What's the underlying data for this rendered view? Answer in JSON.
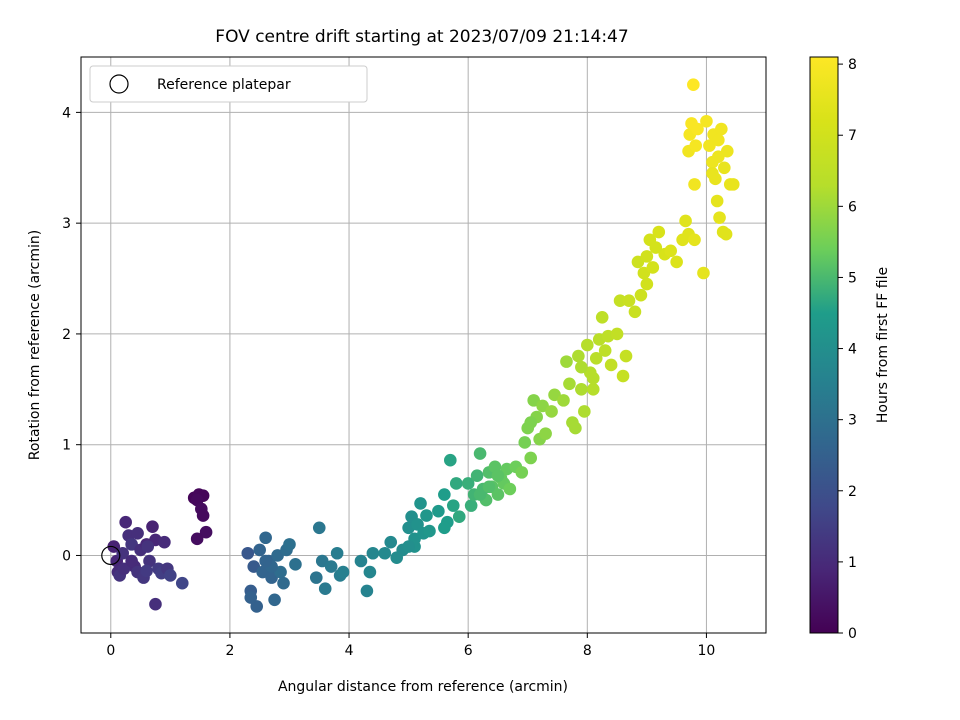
{
  "chart_data": {
    "type": "scatter",
    "title": "FOV centre drift starting at 2023/07/09 21:14:47",
    "xlabel": "Angular distance from reference (arcmin)",
    "ylabel": "Rotation from reference (arcmin)",
    "xlim": [
      -0.5,
      11.0
    ],
    "ylim": [
      -0.7,
      4.5
    ],
    "xticks": [
      "0",
      "2",
      "4",
      "6",
      "8",
      "10"
    ],
    "xtick_values": [
      0,
      2,
      4,
      6,
      8,
      10
    ],
    "yticks": [
      "0",
      "1",
      "2",
      "3",
      "4"
    ],
    "ytick_values": [
      0,
      1,
      2,
      3,
      4
    ],
    "grid": true,
    "legend": {
      "placement": "top-left",
      "entries": [
        "Reference platepar"
      ]
    },
    "reference_point": {
      "x": 0,
      "y": 0
    },
    "colormap": "viridis",
    "colorbar": {
      "label": "Hours from first FF file",
      "range": [
        0,
        8.1
      ],
      "ticks": [
        "0",
        "1",
        "2",
        "3",
        "4",
        "5",
        "6",
        "7",
        "8"
      ],
      "tick_values": [
        0,
        1,
        2,
        3,
        4,
        5,
        6,
        7,
        8
      ]
    },
    "series": [
      {
        "points": [
          {
            "x": 1.4,
            "y": 0.52,
            "c": 0.1
          },
          {
            "x": 1.48,
            "y": 0.55,
            "c": 0.15
          },
          {
            "x": 1.55,
            "y": 0.54,
            "c": 0.12
          },
          {
            "x": 1.45,
            "y": 0.5,
            "c": 0.2
          },
          {
            "x": 1.52,
            "y": 0.42,
            "c": 0.25
          },
          {
            "x": 1.55,
            "y": 0.36,
            "c": 0.22
          },
          {
            "x": 1.6,
            "y": 0.21,
            "c": 0.3
          },
          {
            "x": 1.45,
            "y": 0.15,
            "c": 0.28
          },
          {
            "x": 0.05,
            "y": 0.08,
            "c": 0.8
          },
          {
            "x": 0.1,
            "y": -0.05,
            "c": 0.9
          },
          {
            "x": 0.12,
            "y": -0.15,
            "c": 1.0
          },
          {
            "x": 0.2,
            "y": 0.02,
            "c": 1.2
          },
          {
            "x": 0.25,
            "y": 0.3,
            "c": 0.9
          },
          {
            "x": 0.3,
            "y": 0.18,
            "c": 1.1
          },
          {
            "x": 0.35,
            "y": 0.1,
            "c": 1.3
          },
          {
            "x": 0.4,
            "y": -0.1,
            "c": 1.0
          },
          {
            "x": 0.45,
            "y": -0.15,
            "c": 1.2
          },
          {
            "x": 0.5,
            "y": 0.05,
            "c": 1.1
          },
          {
            "x": 0.55,
            "y": -0.2,
            "c": 1.3
          },
          {
            "x": 0.6,
            "y": 0.1,
            "c": 0.9
          },
          {
            "x": 0.65,
            "y": -0.05,
            "c": 1.2
          },
          {
            "x": 0.7,
            "y": 0.26,
            "c": 0.8
          },
          {
            "x": 0.75,
            "y": 0.14,
            "c": 0.9
          },
          {
            "x": 0.8,
            "y": -0.12,
            "c": 1.4
          },
          {
            "x": 0.85,
            "y": -0.16,
            "c": 1.5
          },
          {
            "x": 0.9,
            "y": 0.12,
            "c": 1.0
          },
          {
            "x": 0.95,
            "y": -0.12,
            "c": 1.3
          },
          {
            "x": 1.0,
            "y": -0.18,
            "c": 1.6
          },
          {
            "x": 1.2,
            "y": -0.25,
            "c": 1.7
          },
          {
            "x": 0.75,
            "y": -0.44,
            "c": 1.1
          },
          {
            "x": 0.15,
            "y": -0.18,
            "c": 1.2
          },
          {
            "x": 0.22,
            "y": -0.12,
            "c": 1.1
          },
          {
            "x": 0.35,
            "y": -0.05,
            "c": 1.0
          },
          {
            "x": 0.6,
            "y": -0.14,
            "c": 1.4
          },
          {
            "x": 0.45,
            "y": 0.2,
            "c": 1.1
          },
          {
            "x": 0.62,
            "y": 0.08,
            "c": 1.2
          },
          {
            "x": 2.3,
            "y": 0.02,
            "c": 2.2
          },
          {
            "x": 2.4,
            "y": -0.1,
            "c": 2.3
          },
          {
            "x": 2.35,
            "y": -0.32,
            "c": 2.4
          },
          {
            "x": 2.45,
            "y": -0.46,
            "c": 2.5
          },
          {
            "x": 2.55,
            "y": -0.15,
            "c": 2.6
          },
          {
            "x": 2.6,
            "y": 0.16,
            "c": 2.7
          },
          {
            "x": 2.65,
            "y": -0.05,
            "c": 2.5
          },
          {
            "x": 2.7,
            "y": -0.2,
            "c": 2.6
          },
          {
            "x": 2.75,
            "y": -0.4,
            "c": 2.7
          },
          {
            "x": 2.8,
            "y": 0.0,
            "c": 2.8
          },
          {
            "x": 2.85,
            "y": -0.15,
            "c": 2.9
          },
          {
            "x": 2.9,
            "y": -0.25,
            "c": 2.8
          },
          {
            "x": 2.95,
            "y": 0.05,
            "c": 2.9
          },
          {
            "x": 3.0,
            "y": 0.1,
            "c": 3.0
          },
          {
            "x": 3.1,
            "y": -0.08,
            "c": 3.0
          },
          {
            "x": 2.5,
            "y": 0.05,
            "c": 2.6
          },
          {
            "x": 2.7,
            "y": -0.1,
            "c": 2.7
          },
          {
            "x": 2.35,
            "y": -0.38,
            "c": 2.5
          },
          {
            "x": 2.6,
            "y": -0.05,
            "c": 2.6
          },
          {
            "x": 3.5,
            "y": 0.25,
            "c": 3.2
          },
          {
            "x": 3.45,
            "y": -0.2,
            "c": 3.1
          },
          {
            "x": 3.55,
            "y": -0.05,
            "c": 3.2
          },
          {
            "x": 3.6,
            "y": -0.3,
            "c": 3.3
          },
          {
            "x": 3.7,
            "y": -0.1,
            "c": 3.3
          },
          {
            "x": 3.8,
            "y": 0.02,
            "c": 3.4
          },
          {
            "x": 3.85,
            "y": -0.18,
            "c": 3.4
          },
          {
            "x": 3.9,
            "y": -0.15,
            "c": 3.5
          },
          {
            "x": 4.2,
            "y": -0.05,
            "c": 3.6
          },
          {
            "x": 4.3,
            "y": -0.32,
            "c": 3.6
          },
          {
            "x": 4.4,
            "y": 0.02,
            "c": 3.7
          },
          {
            "x": 4.35,
            "y": -0.15,
            "c": 3.7
          },
          {
            "x": 4.6,
            "y": 0.02,
            "c": 3.8
          },
          {
            "x": 4.7,
            "y": 0.12,
            "c": 3.8
          },
          {
            "x": 4.8,
            "y": -0.02,
            "c": 3.9
          },
          {
            "x": 4.9,
            "y": 0.05,
            "c": 3.9
          },
          {
            "x": 5.0,
            "y": 0.25,
            "c": 4.0
          },
          {
            "x": 5.05,
            "y": 0.35,
            "c": 4.0
          },
          {
            "x": 5.1,
            "y": 0.15,
            "c": 4.1
          },
          {
            "x": 5.15,
            "y": 0.28,
            "c": 4.1
          },
          {
            "x": 5.2,
            "y": 0.47,
            "c": 4.2
          },
          {
            "x": 5.25,
            "y": 0.2,
            "c": 4.2
          },
          {
            "x": 5.3,
            "y": 0.36,
            "c": 4.3
          },
          {
            "x": 5.35,
            "y": 0.22,
            "c": 4.3
          },
          {
            "x": 5.1,
            "y": 0.08,
            "c": 4.1
          },
          {
            "x": 5.0,
            "y": 0.08,
            "c": 4.0
          },
          {
            "x": 5.5,
            "y": 0.4,
            "c": 4.4
          },
          {
            "x": 5.6,
            "y": 0.55,
            "c": 4.5
          },
          {
            "x": 5.65,
            "y": 0.3,
            "c": 4.5
          },
          {
            "x": 5.7,
            "y": 0.86,
            "c": 4.6
          },
          {
            "x": 5.75,
            "y": 0.45,
            "c": 4.6
          },
          {
            "x": 5.8,
            "y": 0.65,
            "c": 4.7
          },
          {
            "x": 5.85,
            "y": 0.35,
            "c": 4.7
          },
          {
            "x": 5.6,
            "y": 0.25,
            "c": 4.5
          },
          {
            "x": 6.0,
            "y": 0.65,
            "c": 4.8
          },
          {
            "x": 6.05,
            "y": 0.45,
            "c": 4.8
          },
          {
            "x": 6.1,
            "y": 0.55,
            "c": 4.9
          },
          {
            "x": 6.15,
            "y": 0.72,
            "c": 4.9
          },
          {
            "x": 6.2,
            "y": 0.92,
            "c": 5.0
          },
          {
            "x": 6.25,
            "y": 0.6,
            "c": 5.0
          },
          {
            "x": 6.3,
            "y": 0.5,
            "c": 5.1
          },
          {
            "x": 6.35,
            "y": 0.75,
            "c": 5.1
          },
          {
            "x": 6.4,
            "y": 0.62,
            "c": 5.2
          },
          {
            "x": 6.45,
            "y": 0.8,
            "c": 5.2
          },
          {
            "x": 6.5,
            "y": 0.55,
            "c": 5.2
          },
          {
            "x": 6.55,
            "y": 0.7,
            "c": 5.3
          },
          {
            "x": 6.6,
            "y": 0.65,
            "c": 5.3
          },
          {
            "x": 6.65,
            "y": 0.78,
            "c": 5.3
          },
          {
            "x": 6.7,
            "y": 0.6,
            "c": 5.4
          },
          {
            "x": 6.8,
            "y": 0.8,
            "c": 5.4
          },
          {
            "x": 6.2,
            "y": 0.55,
            "c": 5.0
          },
          {
            "x": 6.35,
            "y": 0.62,
            "c": 5.1
          },
          {
            "x": 6.5,
            "y": 0.72,
            "c": 5.2
          },
          {
            "x": 6.9,
            "y": 0.75,
            "c": 5.5
          },
          {
            "x": 6.95,
            "y": 1.02,
            "c": 5.5
          },
          {
            "x": 7.0,
            "y": 1.15,
            "c": 5.6
          },
          {
            "x": 7.05,
            "y": 0.88,
            "c": 5.6
          },
          {
            "x": 7.1,
            "y": 1.4,
            "c": 5.7
          },
          {
            "x": 7.15,
            "y": 1.25,
            "c": 5.7
          },
          {
            "x": 7.2,
            "y": 1.05,
            "c": 5.7
          },
          {
            "x": 7.25,
            "y": 1.35,
            "c": 5.8
          },
          {
            "x": 7.3,
            "y": 1.1,
            "c": 5.8
          },
          {
            "x": 7.4,
            "y": 1.3,
            "c": 5.9
          },
          {
            "x": 7.45,
            "y": 1.45,
            "c": 5.9
          },
          {
            "x": 7.05,
            "y": 1.2,
            "c": 5.6
          },
          {
            "x": 7.6,
            "y": 1.4,
            "c": 6.0
          },
          {
            "x": 7.65,
            "y": 1.75,
            "c": 6.0
          },
          {
            "x": 7.7,
            "y": 1.55,
            "c": 6.1
          },
          {
            "x": 7.75,
            "y": 1.2,
            "c": 6.1
          },
          {
            "x": 7.8,
            "y": 1.15,
            "c": 6.1
          },
          {
            "x": 7.85,
            "y": 1.8,
            "c": 6.2
          },
          {
            "x": 7.9,
            "y": 1.5,
            "c": 6.2
          },
          {
            "x": 7.95,
            "y": 1.3,
            "c": 6.2
          },
          {
            "x": 8.0,
            "y": 1.9,
            "c": 6.3
          },
          {
            "x": 8.05,
            "y": 1.65,
            "c": 6.3
          },
          {
            "x": 8.1,
            "y": 1.5,
            "c": 6.3
          },
          {
            "x": 8.15,
            "y": 1.78,
            "c": 6.4
          },
          {
            "x": 8.2,
            "y": 1.95,
            "c": 6.4
          },
          {
            "x": 8.25,
            "y": 2.15,
            "c": 6.5
          },
          {
            "x": 8.3,
            "y": 1.85,
            "c": 6.5
          },
          {
            "x": 8.35,
            "y": 1.98,
            "c": 6.5
          },
          {
            "x": 8.4,
            "y": 1.72,
            "c": 6.6
          },
          {
            "x": 8.5,
            "y": 2.0,
            "c": 6.6
          },
          {
            "x": 8.55,
            "y": 2.3,
            "c": 6.7
          },
          {
            "x": 8.6,
            "y": 1.62,
            "c": 6.7
          },
          {
            "x": 8.65,
            "y": 1.8,
            "c": 6.7
          },
          {
            "x": 7.9,
            "y": 1.7,
            "c": 6.2
          },
          {
            "x": 8.1,
            "y": 1.6,
            "c": 6.3
          },
          {
            "x": 8.7,
            "y": 2.3,
            "c": 6.8
          },
          {
            "x": 8.8,
            "y": 2.2,
            "c": 6.8
          },
          {
            "x": 8.85,
            "y": 2.65,
            "c": 6.9
          },
          {
            "x": 8.9,
            "y": 2.35,
            "c": 6.9
          },
          {
            "x": 8.95,
            "y": 2.55,
            "c": 7.0
          },
          {
            "x": 9.0,
            "y": 2.7,
            "c": 7.0
          },
          {
            "x": 9.05,
            "y": 2.85,
            "c": 7.1
          },
          {
            "x": 9.1,
            "y": 2.6,
            "c": 7.1
          },
          {
            "x": 9.2,
            "y": 2.92,
            "c": 7.2
          },
          {
            "x": 9.3,
            "y": 2.72,
            "c": 7.2
          },
          {
            "x": 9.4,
            "y": 2.75,
            "c": 7.3
          },
          {
            "x": 9.5,
            "y": 2.65,
            "c": 7.3
          },
          {
            "x": 9.6,
            "y": 2.85,
            "c": 7.4
          },
          {
            "x": 9.65,
            "y": 3.02,
            "c": 7.4
          },
          {
            "x": 9.7,
            "y": 2.9,
            "c": 7.4
          },
          {
            "x": 9.8,
            "y": 2.85,
            "c": 7.5
          },
          {
            "x": 9.95,
            "y": 2.55,
            "c": 7.5
          },
          {
            "x": 9.0,
            "y": 2.45,
            "c": 7.0
          },
          {
            "x": 9.15,
            "y": 2.78,
            "c": 7.1
          },
          {
            "x": 9.7,
            "y": 3.65,
            "c": 7.8
          },
          {
            "x": 9.72,
            "y": 3.8,
            "c": 7.9
          },
          {
            "x": 9.75,
            "y": 3.9,
            "c": 8.0
          },
          {
            "x": 9.78,
            "y": 4.25,
            "c": 8.1
          },
          {
            "x": 9.8,
            "y": 3.35,
            "c": 7.8
          },
          {
            "x": 9.82,
            "y": 3.7,
            "c": 7.9
          },
          {
            "x": 9.85,
            "y": 3.85,
            "c": 8.0
          },
          {
            "x": 10.0,
            "y": 3.92,
            "c": 7.9
          },
          {
            "x": 10.05,
            "y": 3.7,
            "c": 7.8
          },
          {
            "x": 10.1,
            "y": 3.55,
            "c": 7.7
          },
          {
            "x": 10.12,
            "y": 3.8,
            "c": 7.8
          },
          {
            "x": 10.15,
            "y": 3.4,
            "c": 7.6
          },
          {
            "x": 10.18,
            "y": 3.2,
            "c": 7.5
          },
          {
            "x": 10.2,
            "y": 3.6,
            "c": 7.7
          },
          {
            "x": 10.22,
            "y": 3.05,
            "c": 7.5
          },
          {
            "x": 10.25,
            "y": 3.85,
            "c": 7.8
          },
          {
            "x": 10.28,
            "y": 2.92,
            "c": 7.4
          },
          {
            "x": 10.3,
            "y": 3.5,
            "c": 7.6
          },
          {
            "x": 10.33,
            "y": 2.9,
            "c": 7.4
          },
          {
            "x": 10.35,
            "y": 3.65,
            "c": 7.7
          },
          {
            "x": 10.4,
            "y": 3.35,
            "c": 7.6
          },
          {
            "x": 10.45,
            "y": 3.35,
            "c": 7.6
          },
          {
            "x": 10.1,
            "y": 3.45,
            "c": 7.6
          },
          {
            "x": 10.2,
            "y": 3.75,
            "c": 7.8
          }
        ]
      }
    ]
  }
}
